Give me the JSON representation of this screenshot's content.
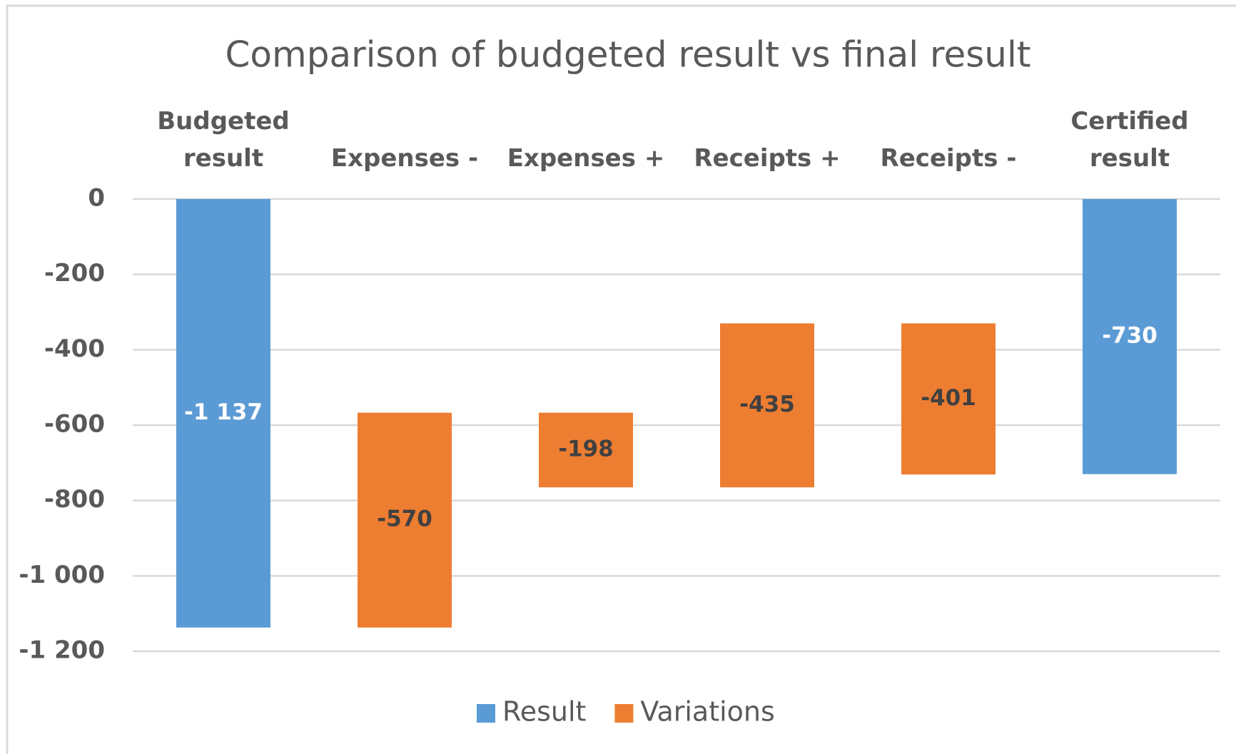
{
  "chart_data": {
    "type": "waterfall",
    "title": "Comparison of budgeted result vs final result",
    "categories": [
      "Budgeted\nresult",
      "Expenses -",
      "Expenses +",
      "Receipts +",
      "Receipts -",
      "Certified\nresult"
    ],
    "series": [
      {
        "name": "Result",
        "color": "#5b9bd5",
        "values": [
          -1137,
          null,
          null,
          null,
          null,
          -730
        ],
        "value_labels": [
          "-1 137",
          null,
          null,
          null,
          null,
          "-730"
        ]
      },
      {
        "name": "Variations",
        "color": "#ed7d31",
        "values": [
          null,
          -570,
          -198,
          -435,
          -401,
          null
        ],
        "offsets": [
          null,
          -567,
          -567,
          -330,
          -330,
          null
        ]
      }
    ],
    "ylim": [
      -1200,
      0
    ],
    "yticks": [
      0,
      -200,
      -400,
      -600,
      -800,
      {
        "value": -1000,
        "label": "-1 000"
      },
      {
        "value": -1200,
        "label": "-1 200"
      }
    ],
    "grid": true,
    "legend": "bottom"
  }
}
